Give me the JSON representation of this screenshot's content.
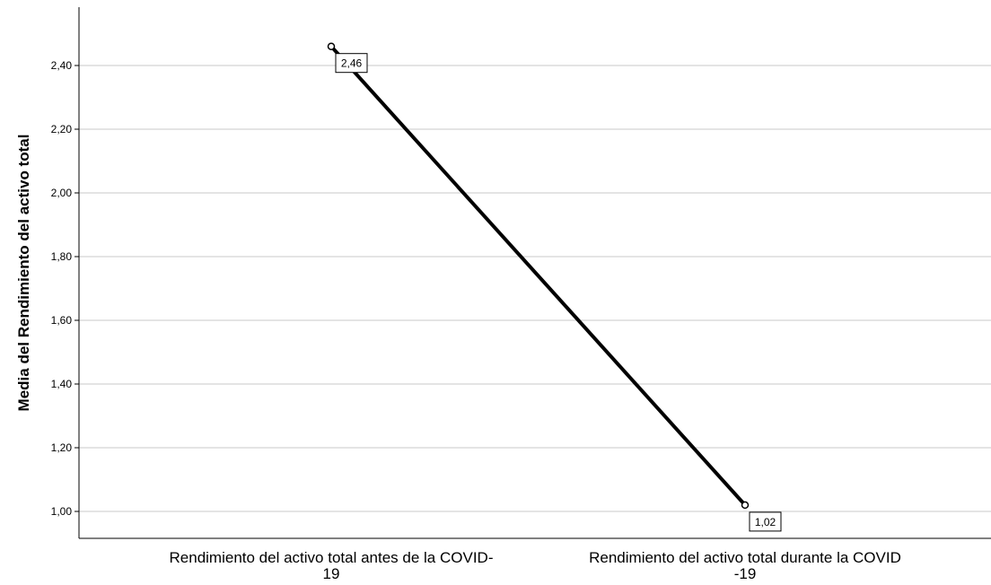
{
  "chart_data": {
    "type": "line",
    "title": "",
    "xlabel": "",
    "ylabel": "Media del Rendimiento del activo total",
    "categories": [
      [
        "Rendimiento del activo total antes de la COVID-",
        "19"
      ],
      [
        "Rendimiento del activo total durante la COVID",
        "-19"
      ]
    ],
    "series": [
      {
        "values": [
          2.46,
          1.02
        ],
        "data_labels": [
          "2,46",
          "1,02"
        ]
      }
    ],
    "ylim": [
      0.93,
      2.58
    ],
    "yticks": [
      1.0,
      1.2,
      1.4,
      1.6,
      1.8,
      2.0,
      2.2,
      2.4
    ],
    "ytick_labels": [
      "1,00",
      "1,20",
      "1,40",
      "1,60",
      "1,80",
      "2,00",
      "2,20",
      "2,40"
    ],
    "grid": true,
    "colors": {
      "line": "#000000",
      "grid": "#c8c8c8",
      "axis": "#000000"
    }
  }
}
